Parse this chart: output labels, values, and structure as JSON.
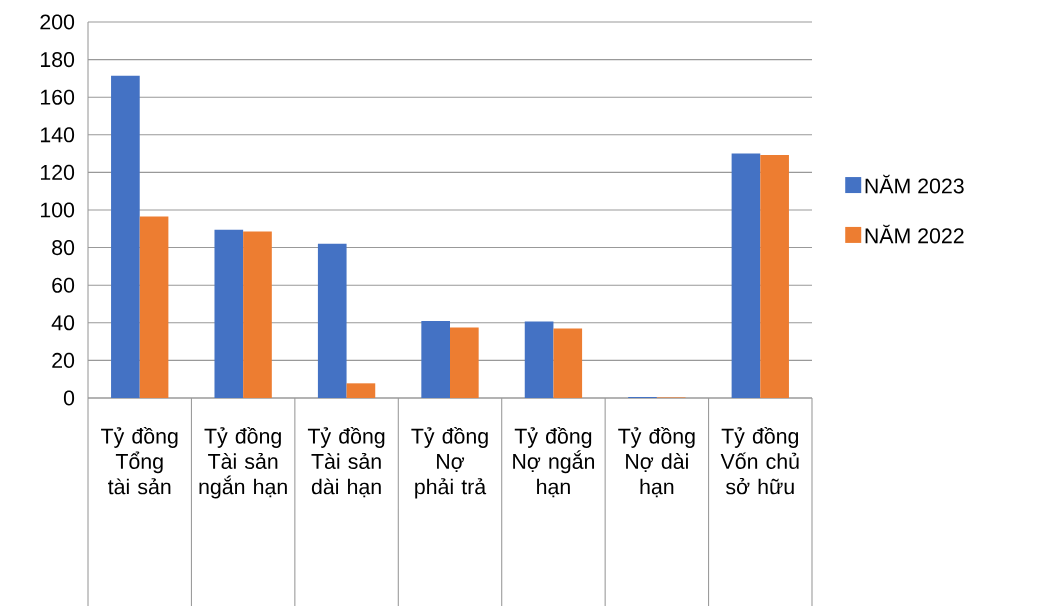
{
  "chart_data": {
    "type": "bar",
    "categories": [
      "Tỷ đồng Tổng tài sản",
      "Tỷ đồng Tài sản ngắn hạn",
      "Tỷ đồng Tài sản dài hạn",
      "Tỷ đồng Nợ phải trả",
      "Tỷ đồng Nợ ngắn hạn",
      "Tỷ đồng Nợ dài hạn",
      "Tỷ đồng Vốn chủ sở hữu"
    ],
    "series": [
      {
        "name": "NĂM 2023",
        "color": "#4472c4",
        "values": [
          171.4,
          89.5,
          82.1,
          41.0,
          40.7,
          0.5,
          130.1
        ]
      },
      {
        "name": "NĂM 2022",
        "color": "#ed7d31",
        "values": [
          96.6,
          88.6,
          7.8,
          37.5,
          37.0,
          0.3,
          129.3
        ]
      }
    ],
    "ylim": [
      0,
      200
    ],
    "yticks": [
      0,
      20,
      40,
      60,
      80,
      100,
      120,
      140,
      160,
      180,
      200
    ],
    "grid": "y",
    "legend": "right"
  }
}
